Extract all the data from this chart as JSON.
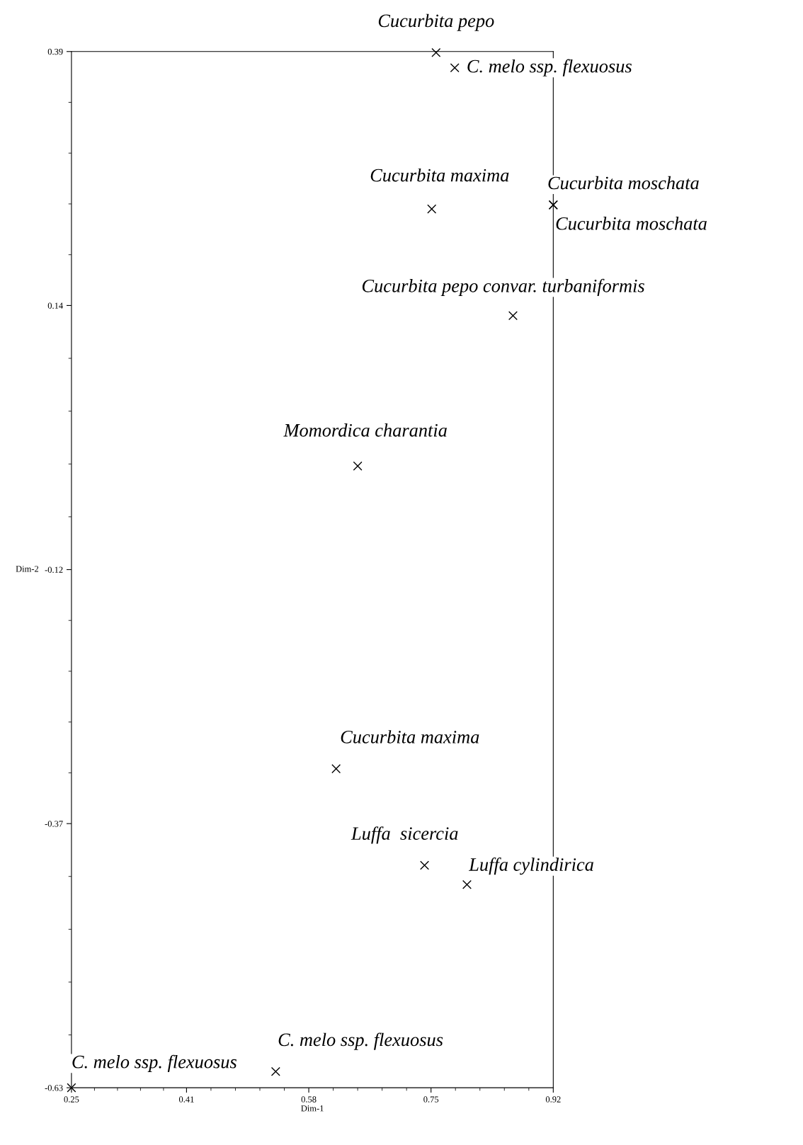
{
  "chart_data": {
    "type": "scatter",
    "xlabel": "Dim-1",
    "ylabel": "Dim-2",
    "xlim": [
      0.25,
      0.92
    ],
    "xticks": [
      0.25,
      0.41,
      0.58,
      0.75,
      0.92
    ],
    "ylim": [
      -0.63,
      0.39
    ],
    "yticks": [
      -0.63,
      -0.37,
      -0.12,
      0.14,
      0.39
    ],
    "marker": "cross",
    "grid": false,
    "series": [
      {
        "color": "#000000",
        "x": [
          0.757,
          0.783,
          0.751,
          0.92,
          0.92,
          0.864,
          0.648,
          0.618,
          0.741,
          0.8,
          0.534,
          0.25
        ],
        "values": [
          0.389,
          0.374,
          0.235,
          0.239,
          0.239,
          0.13,
          -0.018,
          -0.316,
          -0.411,
          -0.43,
          -0.614,
          -0.63
        ]
      }
    ],
    "annotations": [
      {
        "text": "Cucurbita pepo",
        "x": 0.757,
        "y": 0.389
      },
      {
        "text": "C. melo ssp. flexuosus",
        "x": 0.783,
        "y": 0.374
      },
      {
        "text": "Cucurbita maxima",
        "x": 0.751,
        "y": 0.235
      },
      {
        "text": "Cucurbita moschata",
        "x": 0.92,
        "y": 0.239
      },
      {
        "text": "Cucurbita moschata",
        "x": 0.92,
        "y": 0.239
      },
      {
        "text": "Cucurbita pepo convar. turbaniformis",
        "x": 0.864,
        "y": 0.13
      },
      {
        "text": "Momordica charantia",
        "x": 0.648,
        "y": -0.018
      },
      {
        "text": "Cucurbita maxima",
        "x": 0.618,
        "y": -0.316
      },
      {
        "text": "Luffa  sicercia",
        "x": 0.741,
        "y": -0.411
      },
      {
        "text": "Luffa cylindirica",
        "x": 0.8,
        "y": -0.43
      },
      {
        "text": "C. melo ssp. flexuosus",
        "x": 0.534,
        "y": -0.614
      },
      {
        "text": "C. melo ssp. flexuosus",
        "x": 0.25,
        "y": -0.63
      }
    ]
  }
}
